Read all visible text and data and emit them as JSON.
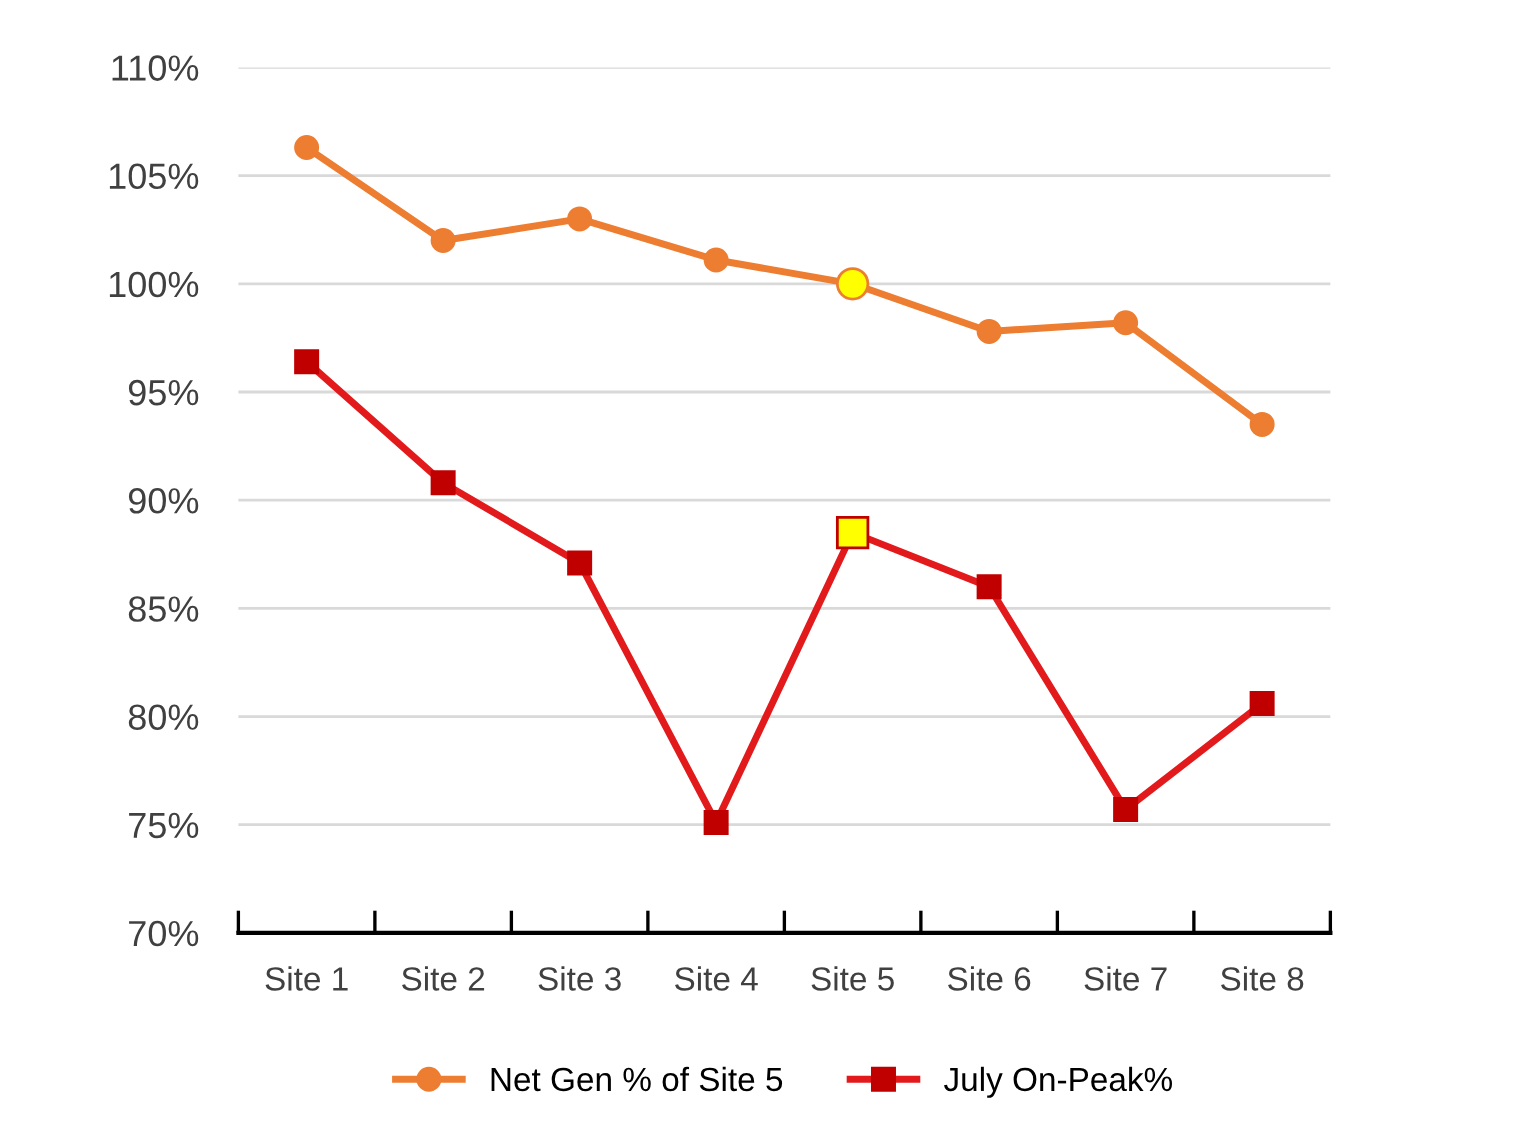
{
  "chart_data": {
    "type": "line",
    "categories": [
      "Site 1",
      "Site 2",
      "Site 3",
      "Site 4",
      "Site 5",
      "Site 6",
      "Site 7",
      "Site 8"
    ],
    "series": [
      {
        "name": "Net Gen % of Site 5",
        "color": "#ed7d31",
        "marker": "circle",
        "values": [
          106.3,
          102.0,
          103.0,
          101.1,
          100.0,
          97.8,
          98.2,
          93.5
        ],
        "colors": [
          "#ed7d31",
          "#ed7d31",
          "#ed7d31",
          "#ed7d31",
          "#ffff00",
          "#ed7d31",
          "#ed7d31",
          "#ed7d31"
        ]
      },
      {
        "name": "July On-Peak%",
        "color": "#e31a1c",
        "marker": "square",
        "values": [
          96.4,
          90.8,
          87.1,
          75.1,
          88.5,
          86.0,
          75.7,
          80.6
        ],
        "colors": [
          "#c00000",
          "#c00000",
          "#c00000",
          "#c00000",
          "#ffff00",
          "#c00000",
          "#c00000",
          "#c00000"
        ]
      }
    ],
    "ylim": [
      70,
      110
    ],
    "yticks": [
      {
        "value": 70,
        "label": "70%"
      },
      {
        "value": 75,
        "label": "75%"
      },
      {
        "value": 80,
        "label": "80%"
      },
      {
        "value": 85,
        "label": "85%"
      },
      {
        "value": 90,
        "label": "90%"
      },
      {
        "value": 95,
        "label": "95%"
      },
      {
        "value": 100,
        "label": "100%"
      },
      {
        "value": 105,
        "label": "105%"
      },
      {
        "value": 110,
        "label": "110%"
      }
    ],
    "grid": "y",
    "legend": "bottom",
    "line_style": "solid"
  }
}
